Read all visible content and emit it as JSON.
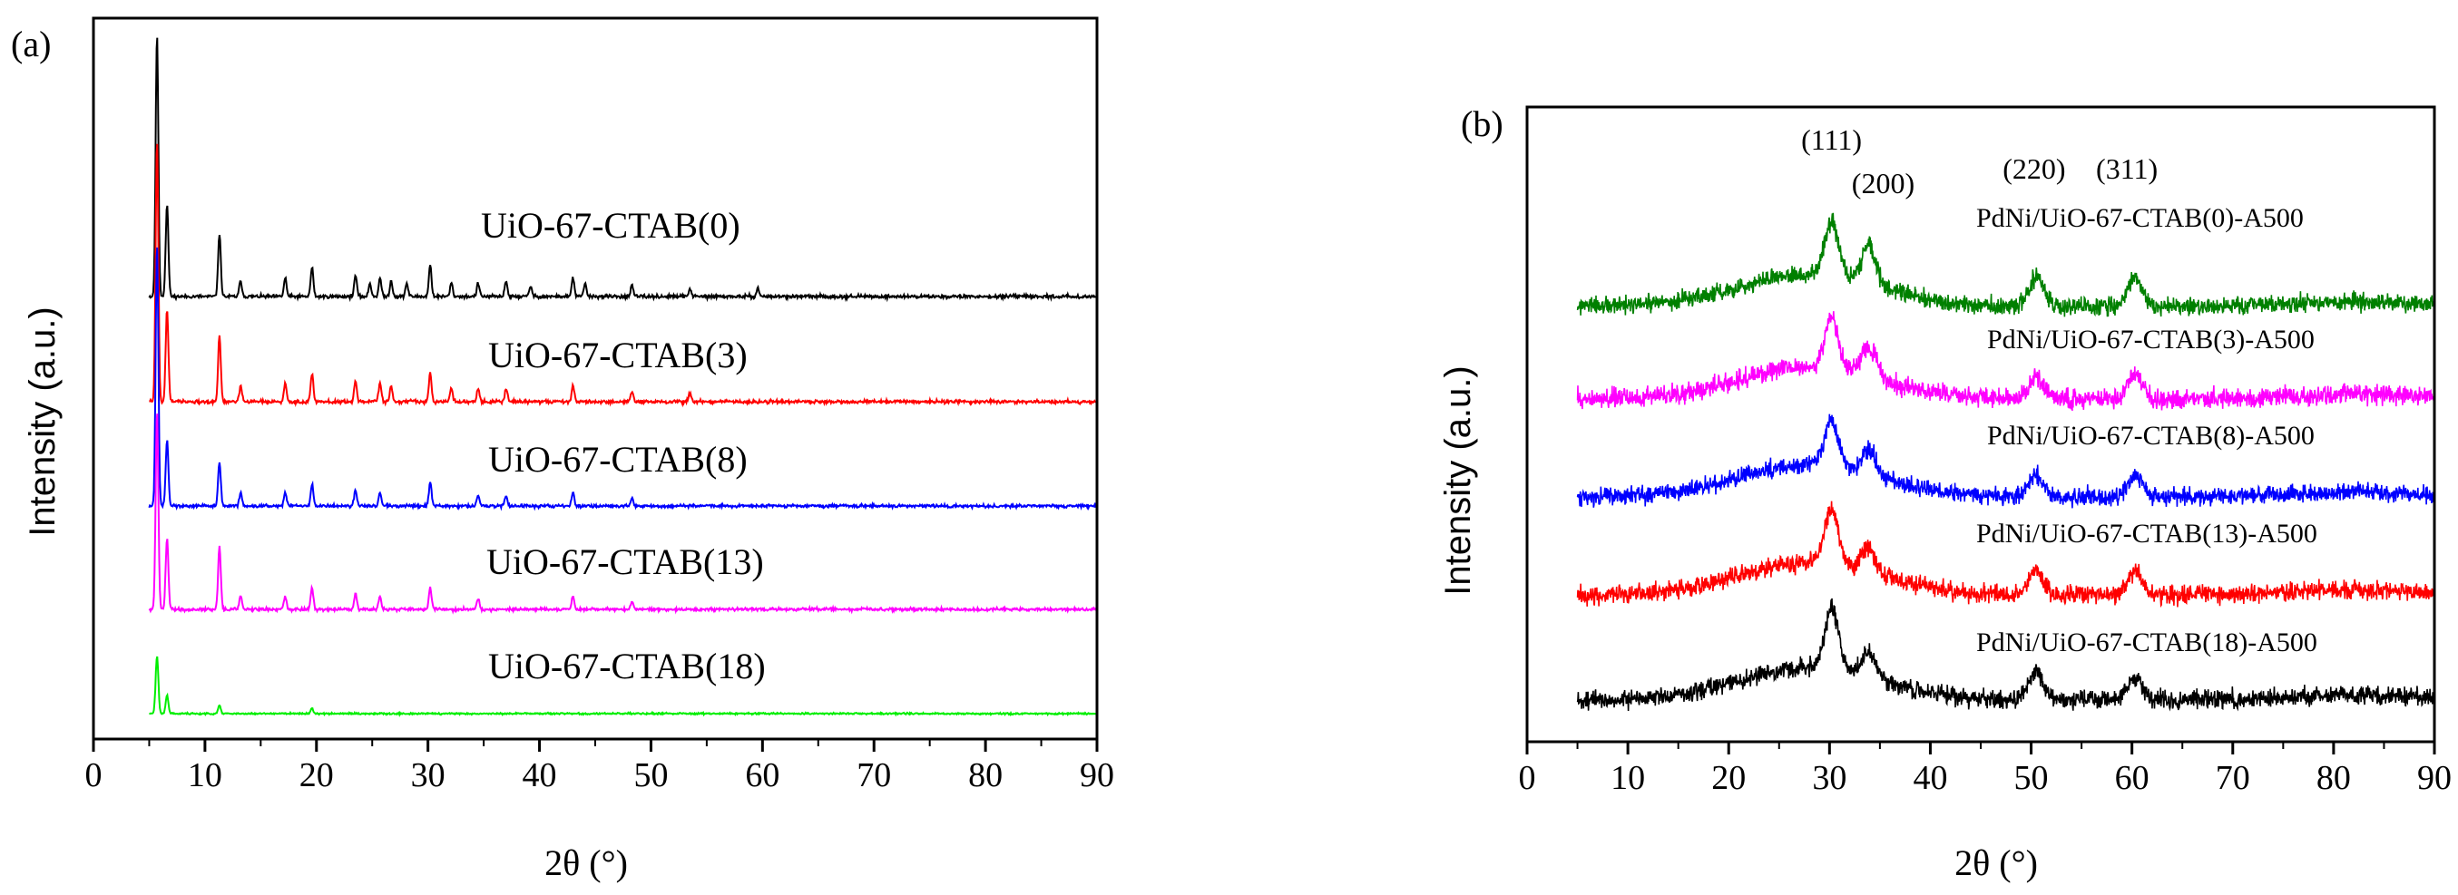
{
  "chart_data": [
    {
      "panel_label": "(a)",
      "type": "line",
      "xlabel": "2θ (°)",
      "ylabel": "Intensity (a.u.)",
      "xlim": [
        0,
        90
      ],
      "xticks": [
        "0",
        "10",
        "20",
        "30",
        "40",
        "50",
        "60",
        "70",
        "80",
        "90"
      ],
      "x_start": 5,
      "series": [
        {
          "name": "UiO-67-CTAB(0)",
          "color": "#000000",
          "peaks": [
            [
              5.7,
              1.0
            ],
            [
              6.6,
              0.35
            ],
            [
              11.3,
              0.24
            ],
            [
              13.2,
              0.06
            ],
            [
              17.2,
              0.07
            ],
            [
              19.6,
              0.11
            ],
            [
              23.5,
              0.08
            ],
            [
              24.8,
              0.05
            ],
            [
              25.7,
              0.07
            ],
            [
              26.7,
              0.06
            ],
            [
              28.1,
              0.05
            ],
            [
              30.2,
              0.12
            ],
            [
              32.1,
              0.05
            ],
            [
              34.5,
              0.05
            ],
            [
              37.0,
              0.06
            ],
            [
              39.2,
              0.04
            ],
            [
              43.0,
              0.07
            ],
            [
              44.1,
              0.05
            ],
            [
              48.3,
              0.04
            ],
            [
              53.5,
              0.03
            ],
            [
              59.6,
              0.03
            ]
          ],
          "noise": 0.016
        },
        {
          "name": "UiO-67-CTAB(3)",
          "color": "#ff0000",
          "peaks": [
            [
              5.7,
              1.0
            ],
            [
              6.6,
              0.35
            ],
            [
              11.3,
              0.25
            ],
            [
              13.2,
              0.06
            ],
            [
              17.2,
              0.07
            ],
            [
              19.6,
              0.11
            ],
            [
              23.5,
              0.08
            ],
            [
              25.7,
              0.07
            ],
            [
              26.7,
              0.06
            ],
            [
              30.2,
              0.11
            ],
            [
              32.1,
              0.05
            ],
            [
              34.5,
              0.05
            ],
            [
              37.0,
              0.05
            ],
            [
              43.0,
              0.06
            ],
            [
              48.3,
              0.04
            ],
            [
              53.5,
              0.03
            ]
          ],
          "noise": 0.016
        },
        {
          "name": "UiO-67-CTAB(8)",
          "color": "#0000ff",
          "peaks": [
            [
              5.7,
              1.0
            ],
            [
              6.6,
              0.25
            ],
            [
              11.3,
              0.17
            ],
            [
              13.2,
              0.05
            ],
            [
              17.2,
              0.05
            ],
            [
              19.6,
              0.08
            ],
            [
              23.5,
              0.06
            ],
            [
              25.7,
              0.05
            ],
            [
              30.2,
              0.09
            ],
            [
              34.5,
              0.04
            ],
            [
              37.0,
              0.04
            ],
            [
              43.0,
              0.05
            ],
            [
              48.3,
              0.03
            ]
          ],
          "noise": 0.014
        },
        {
          "name": "UiO-67-CTAB(13)",
          "color": "#ff00ff",
          "peaks": [
            [
              5.7,
              0.75
            ],
            [
              6.6,
              0.27
            ],
            [
              11.3,
              0.24
            ],
            [
              13.2,
              0.05
            ],
            [
              17.2,
              0.05
            ],
            [
              19.6,
              0.08
            ],
            [
              23.5,
              0.06
            ],
            [
              25.7,
              0.05
            ],
            [
              30.2,
              0.08
            ],
            [
              34.5,
              0.04
            ],
            [
              43.0,
              0.05
            ],
            [
              48.3,
              0.03
            ]
          ],
          "noise": 0.014
        },
        {
          "name": "UiO-67-CTAB(18)",
          "color": "#00ee00",
          "peaks": [
            [
              5.7,
              0.22
            ],
            [
              6.6,
              0.07
            ],
            [
              11.3,
              0.03
            ],
            [
              19.6,
              0.02
            ]
          ],
          "noise": 0.008
        }
      ]
    },
    {
      "panel_label": "(b)",
      "type": "line",
      "xlabel": "2θ (°)",
      "ylabel": "Intensity (a.u.)",
      "xlim": [
        0,
        90
      ],
      "xticks": [
        "0",
        "10",
        "20",
        "30",
        "40",
        "50",
        "60",
        "70",
        "80",
        "90"
      ],
      "x_start": 5,
      "peak_labels": [
        {
          "text": "(111)",
          "x": 30.2
        },
        {
          "text": "(200)",
          "x": 34.6
        },
        {
          "text": "(220)",
          "x": 50.3
        },
        {
          "text": "(311)",
          "x": 59.5
        }
      ],
      "series": [
        {
          "name": "PdNi/UiO-67-CTAB(0)-A500",
          "color": "#008000",
          "peaks": [
            [
              30.2,
              0.55
            ],
            [
              33.9,
              0.38
            ],
            [
              50.5,
              0.3
            ],
            [
              60.3,
              0.3
            ]
          ],
          "noise": 0.11
        },
        {
          "name": "PdNi/UiO-67-CTAB(3)-A500",
          "color": "#ff00ff",
          "peaks": [
            [
              30.2,
              0.5
            ],
            [
              33.9,
              0.3
            ],
            [
              50.5,
              0.22
            ],
            [
              60.3,
              0.25
            ]
          ],
          "noise": 0.12
        },
        {
          "name": "PdNi/UiO-67-CTAB(8)-A500",
          "color": "#0000ff",
          "peaks": [
            [
              30.2,
              0.45
            ],
            [
              33.9,
              0.25
            ],
            [
              50.5,
              0.22
            ],
            [
              60.3,
              0.22
            ]
          ],
          "noise": 0.11
        },
        {
          "name": "PdNi/UiO-67-CTAB(13)-A500",
          "color": "#ff0000",
          "peaks": [
            [
              30.2,
              0.55
            ],
            [
              33.9,
              0.25
            ],
            [
              50.5,
              0.25
            ],
            [
              60.3,
              0.25
            ]
          ],
          "noise": 0.11
        },
        {
          "name": "PdNi/UiO-67-CTAB(18)-A500",
          "color": "#000000",
          "peaks": [
            [
              30.2,
              0.6
            ],
            [
              33.9,
              0.25
            ],
            [
              50.5,
              0.28
            ],
            [
              60.3,
              0.22
            ]
          ],
          "noise": 0.11
        }
      ]
    }
  ]
}
